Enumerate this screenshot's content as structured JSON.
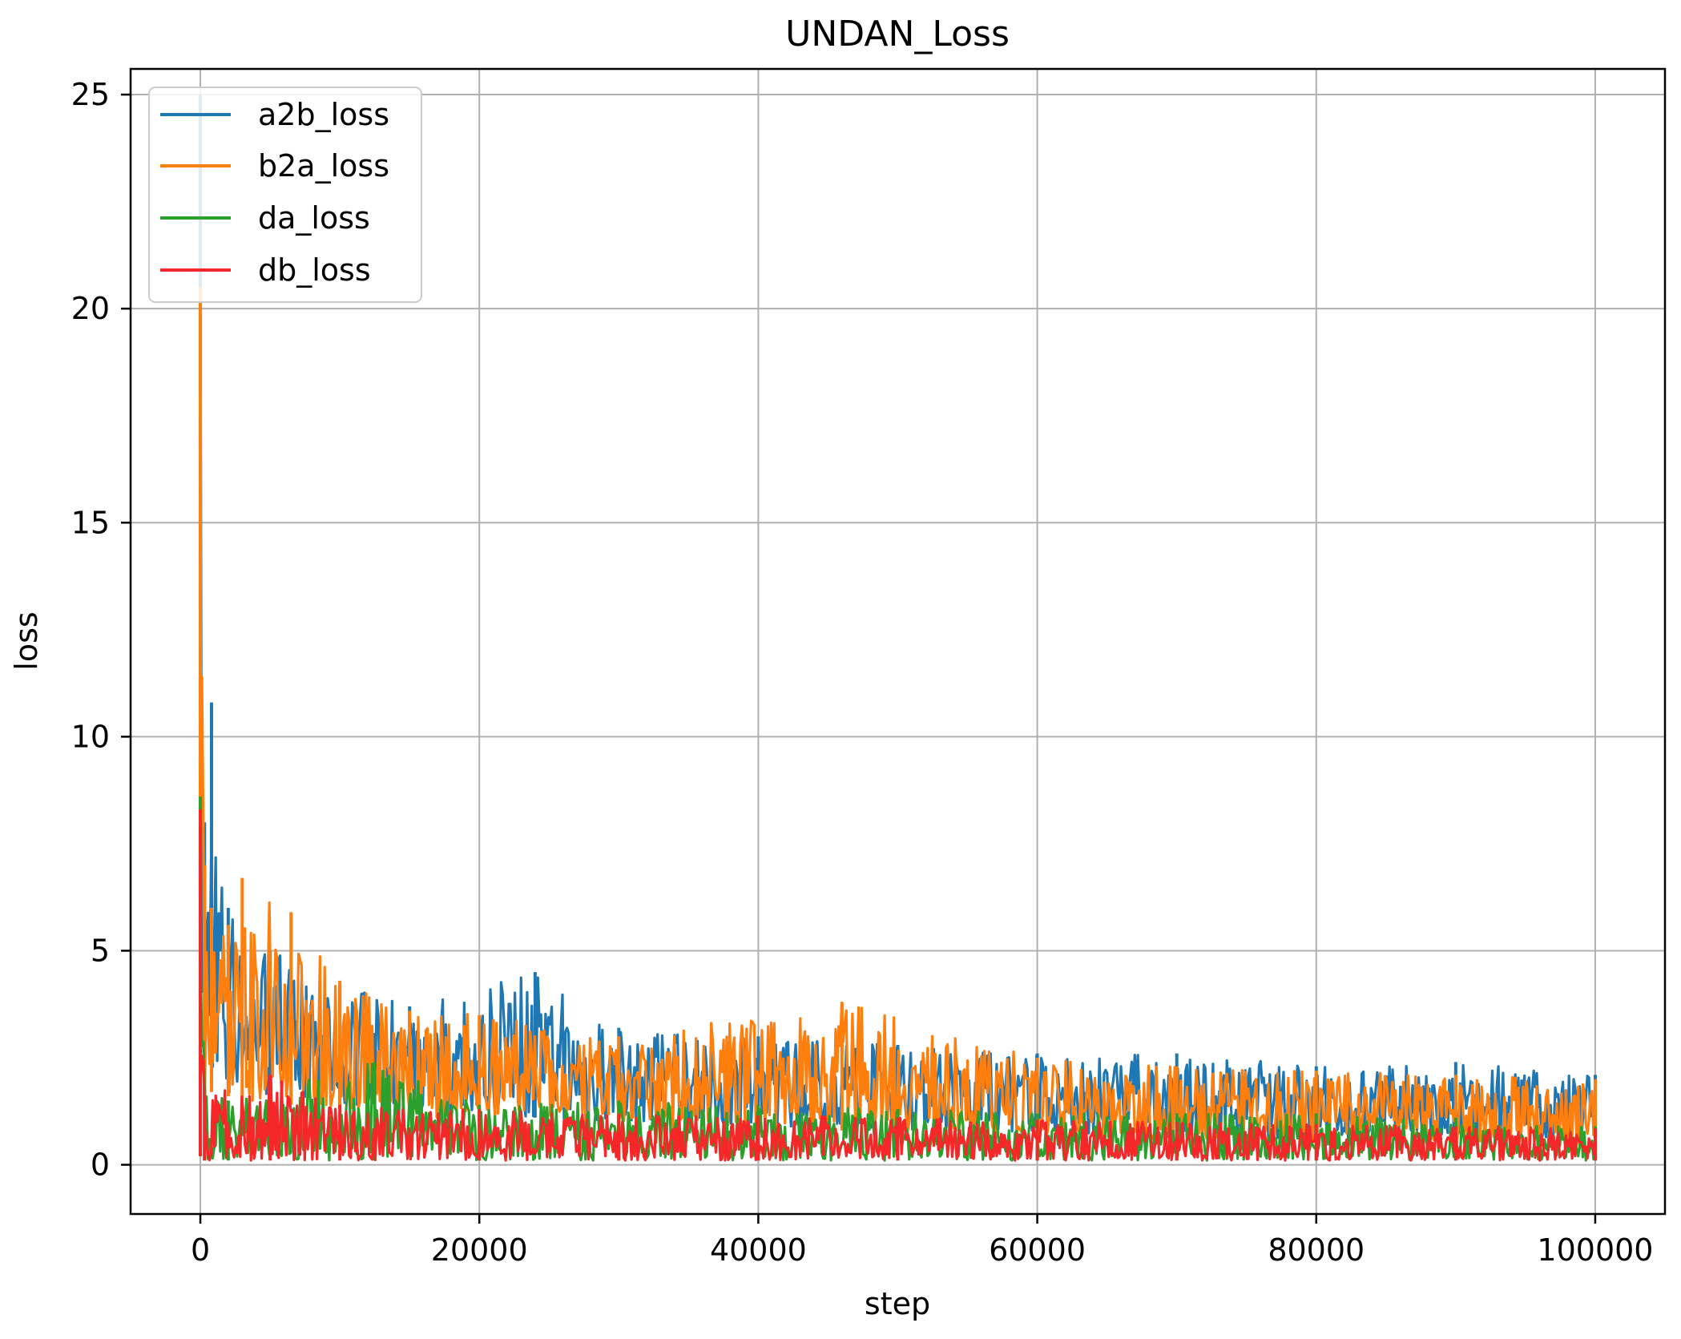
{
  "chart_data": {
    "type": "line",
    "title": "UNDAN_Loss",
    "xlabel": "step",
    "ylabel": "loss",
    "xlim": [
      -5000,
      105000
    ],
    "ylim": [
      -1.15,
      25.6
    ],
    "xticks": [
      0,
      20000,
      40000,
      60000,
      80000,
      100000
    ],
    "yticks": [
      0,
      5,
      10,
      15,
      20,
      25
    ],
    "grid": true,
    "legend_position": "upper-left",
    "series": [
      {
        "name": "a2b_loss",
        "color": "#1f77b4",
        "envelope": [
          [
            0,
            0.4,
            25.0
          ],
          [
            300,
            1.6,
            8.0
          ],
          [
            800,
            1.9,
            10.8
          ],
          [
            2000,
            1.8,
            6.0
          ],
          [
            5000,
            1.6,
            5.0
          ],
          [
            10000,
            1.4,
            4.2
          ],
          [
            15000,
            1.2,
            3.7
          ],
          [
            24000,
            1.1,
            4.5
          ],
          [
            30000,
            1.0,
            3.2
          ],
          [
            40000,
            0.9,
            3.0
          ],
          [
            50000,
            0.8,
            2.8
          ],
          [
            60000,
            0.75,
            2.6
          ],
          [
            70000,
            0.7,
            2.6
          ],
          [
            80000,
            0.6,
            2.3
          ],
          [
            90000,
            0.5,
            2.4
          ],
          [
            100000,
            0.5,
            2.1
          ]
        ]
      },
      {
        "name": "b2a_loss",
        "color": "#ff7f0e",
        "envelope": [
          [
            0,
            0.4,
            20.5
          ],
          [
            300,
            1.5,
            7.0
          ],
          [
            800,
            1.7,
            6.0
          ],
          [
            2000,
            1.6,
            5.6
          ],
          [
            3000,
            1.5,
            6.7
          ],
          [
            6500,
            1.4,
            5.9
          ],
          [
            10000,
            1.3,
            4.3
          ],
          [
            15000,
            1.1,
            3.6
          ],
          [
            20000,
            1.0,
            3.5
          ],
          [
            30000,
            0.9,
            3.0
          ],
          [
            46000,
            0.8,
            3.8
          ],
          [
            60000,
            0.7,
            2.5
          ],
          [
            70000,
            0.6,
            2.3
          ],
          [
            80000,
            0.55,
            2.2
          ],
          [
            90000,
            0.5,
            2.1
          ],
          [
            100000,
            0.4,
            2.0
          ]
        ]
      },
      {
        "name": "da_loss",
        "color": "#2ca02c",
        "envelope": [
          [
            0,
            0.2,
            8.6
          ],
          [
            300,
            0.1,
            1.8
          ],
          [
            2000,
            0.1,
            1.5
          ],
          [
            12500,
            0.1,
            2.4
          ],
          [
            20000,
            0.1,
            1.4
          ],
          [
            30000,
            0.1,
            1.5
          ],
          [
            40000,
            0.1,
            1.4
          ],
          [
            50000,
            0.1,
            1.3
          ],
          [
            60000,
            0.1,
            1.2
          ],
          [
            70000,
            0.1,
            1.2
          ],
          [
            80000,
            0.1,
            1.2
          ],
          [
            90000,
            0.1,
            1.1
          ],
          [
            100000,
            0.1,
            0.9
          ]
        ]
      },
      {
        "name": "db_loss",
        "color": "#f62728",
        "envelope": [
          [
            0,
            0.2,
            8.3
          ],
          [
            300,
            0.1,
            1.6
          ],
          [
            5000,
            0.1,
            2.1
          ],
          [
            10000,
            0.1,
            1.4
          ],
          [
            20000,
            0.1,
            1.3
          ],
          [
            30000,
            0.1,
            1.2
          ],
          [
            40000,
            0.1,
            1.15
          ],
          [
            50000,
            0.1,
            1.1
          ],
          [
            60000,
            0.1,
            1.05
          ],
          [
            70000,
            0.1,
            1.0
          ],
          [
            80000,
            0.1,
            0.95
          ],
          [
            90000,
            0.1,
            0.9
          ],
          [
            100000,
            0.1,
            0.85
          ]
        ]
      }
    ]
  }
}
